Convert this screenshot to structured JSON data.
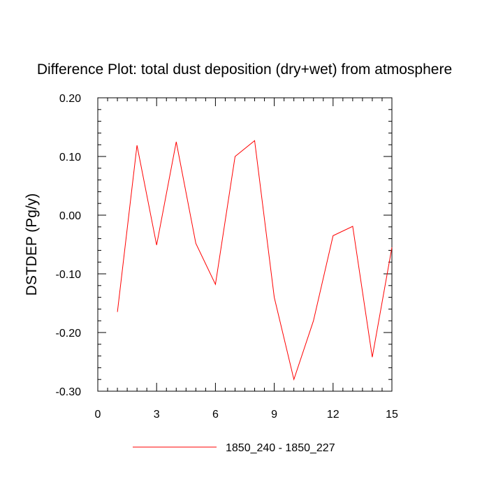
{
  "chart_data": {
    "type": "line",
    "title": "Difference Plot: total dust deposition (dry+wet) from atmosphere",
    "xlabel": "",
    "ylabel": "DSTDEP  (Pg/y)",
    "xlim": [
      0,
      15
    ],
    "ylim": [
      -0.3,
      0.2
    ],
    "x_ticks": [
      0,
      3,
      6,
      9,
      12,
      15
    ],
    "x_tick_labels": [
      "0",
      "3",
      "6",
      "9",
      "12",
      "15"
    ],
    "y_ticks": [
      -0.3,
      -0.2,
      -0.1,
      0.0,
      0.1,
      0.2
    ],
    "y_tick_labels": [
      "-0.30",
      "-0.20",
      "-0.10",
      "0.00",
      "0.10",
      "0.20"
    ],
    "grid": false,
    "legend_position": "bottom-center",
    "series": [
      {
        "name": "1850_240 - 1850_227",
        "color": "#ff0000",
        "x": [
          1,
          2,
          3,
          4,
          5,
          6,
          7,
          8,
          9,
          10,
          11,
          12,
          13,
          14,
          15
        ],
        "y": [
          -0.165,
          0.119,
          -0.051,
          0.125,
          -0.048,
          -0.118,
          0.1,
          0.127,
          -0.14,
          -0.28,
          -0.18,
          -0.035,
          -0.019,
          -0.242,
          -0.055
        ]
      }
    ]
  }
}
